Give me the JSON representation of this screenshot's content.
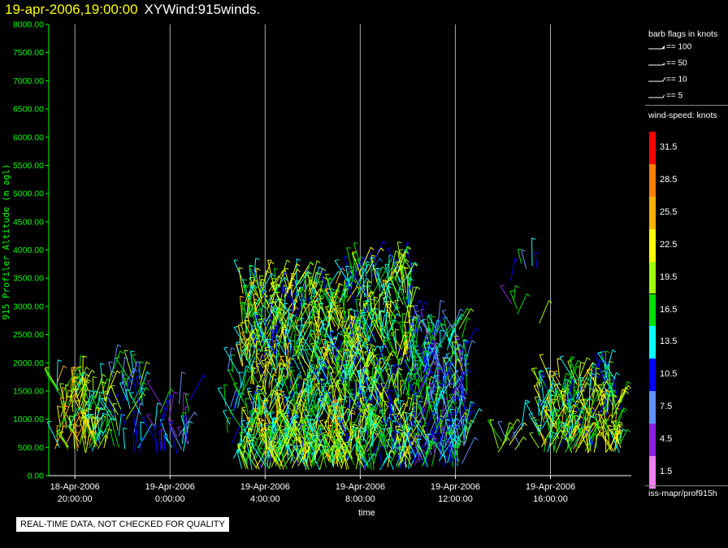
{
  "header": {
    "datetime": "19-apr-2006,19:00:00",
    "product": "XYWind:915winds."
  },
  "chart_data": {
    "type": "scatter",
    "title": "19-apr-2006,19:00:00 XYWind:915winds.",
    "ylabel": "915 Profiler Altitude (m agl)",
    "xlabel": "time",
    "ylim": [
      0,
      8000
    ],
    "y_ticks": [
      "0.00",
      "500.00",
      "1000.00",
      "1500.00",
      "2000.00",
      "2500.00",
      "3000.00",
      "3500.00",
      "4000.00",
      "4500.00",
      "5000.00",
      "5500.00",
      "6000.00",
      "6500.00",
      "7000.00",
      "7500.00",
      "8000.00"
    ],
    "x_ticks": [
      {
        "date": "18-Apr-2006",
        "time": "20:00:00",
        "hour": 0
      },
      {
        "date": "19-Apr-2006",
        "time": "0:00:00",
        "hour": 4
      },
      {
        "date": "19-Apr-2006",
        "time": "4:00:00",
        "hour": 8
      },
      {
        "date": "19-Apr-2006",
        "time": "8:00:00",
        "hour": 12
      },
      {
        "date": "19-Apr-2006",
        "time": "12:00:00",
        "hour": 16
      },
      {
        "date": "19-Apr-2006",
        "time": "16:00:00",
        "hour": 20
      }
    ],
    "xlim_hours": [
      -1.1,
      23.4
    ],
    "grid": "vertical",
    "clusters": [
      {
        "t0": -0.85,
        "t1": 1.3,
        "ymin": 400,
        "ymax": 1650,
        "speed": 20,
        "n": 110
      },
      {
        "t0": 1.55,
        "t1": 2.85,
        "ymin": 400,
        "ymax": 1900,
        "speed": 13,
        "n": 45
      },
      {
        "t0": 3.35,
        "t1": 4.9,
        "ymin": 350,
        "ymax": 1400,
        "speed": 10,
        "n": 30
      },
      {
        "t0": 6.3,
        "t1": 6.9,
        "ymin": 300,
        "ymax": 1900,
        "speed": 13,
        "n": 14
      },
      {
        "t0": 7.0,
        "t1": 11.5,
        "ymin": 100,
        "ymax": 3400,
        "speed": 18,
        "n": 750
      },
      {
        "t0": 11.5,
        "t1": 14.2,
        "ymin": 100,
        "ymax": 3700,
        "speed": 17,
        "n": 450
      },
      {
        "t0": 14.2,
        "t1": 16.5,
        "ymin": 150,
        "ymax": 2600,
        "speed": 12,
        "n": 250
      },
      {
        "t0": 17.8,
        "t1": 18.8,
        "ymin": 400,
        "ymax": 800,
        "speed": 15,
        "n": 12
      },
      {
        "t0": 19.5,
        "t1": 23.0,
        "ymin": 400,
        "ymax": 1750,
        "speed": 18,
        "n": 230
      },
      {
        "t0": 18.0,
        "t1": 19.6,
        "ymin": 2700,
        "ymax": 3800,
        "speed": 12,
        "n": 10
      }
    ]
  },
  "legend": {
    "barb_title": "barb flags in knots",
    "barbs": [
      "== 100",
      "== 50",
      "== 10",
      "== 5"
    ],
    "speed_title": "wind-speed: knots",
    "scale": [
      {
        "label": "31.5",
        "color": "#ff0000"
      },
      {
        "label": "28.5",
        "color": "#ff8000"
      },
      {
        "label": "25.5",
        "color": "#ffb000"
      },
      {
        "label": "22.5",
        "color": "#ffff00"
      },
      {
        "label": "19.5",
        "color": "#a0ff00"
      },
      {
        "label": "16.5",
        "color": "#00e000"
      },
      {
        "label": "13.5",
        "color": "#00ffff"
      },
      {
        "label": "10.5",
        "color": "#0000ff"
      },
      {
        "label": "7.5",
        "color": "#6090ff"
      },
      {
        "label": "4.5",
        "color": "#9020e0"
      },
      {
        "label": "1.5",
        "color": "#f080f0"
      }
    ],
    "source": "iss-mapr/prof915h"
  },
  "notice": "REAL-TIME DATA, NOT CHECKED FOR QUALITY",
  "colors": {
    "axis": "#00ff00",
    "title_date": "#ffff00",
    "grid": "#aaaaaa"
  }
}
